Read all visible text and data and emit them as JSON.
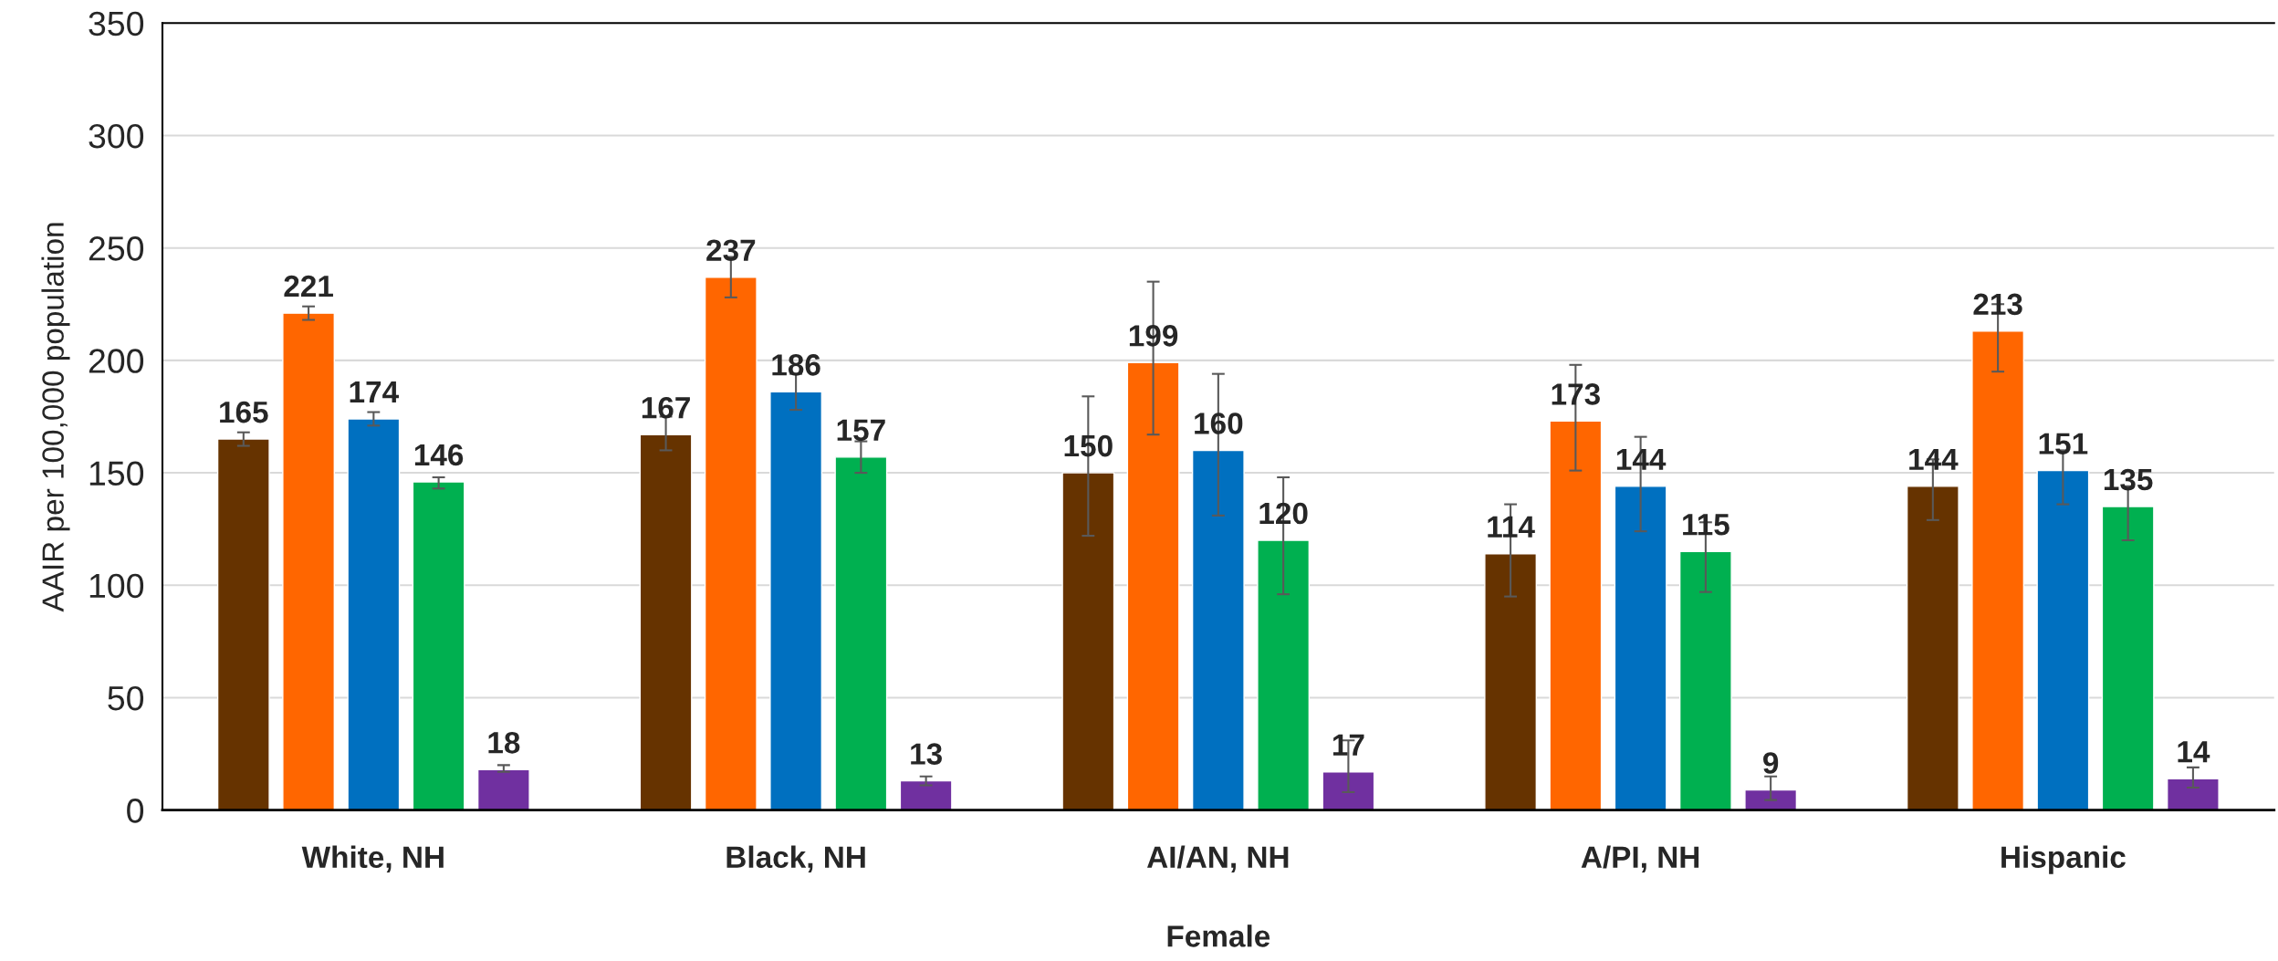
{
  "chart_data": {
    "type": "bar",
    "xlabel": "Female",
    "ylabel": "AAIR per 100,000 population",
    "categories": [
      "White, NH",
      "Black, NH",
      "AI/AN, NH",
      "A/PI, NH",
      "Hispanic"
    ],
    "series": [
      {
        "color": "#663300",
        "values": [
          165,
          167,
          150,
          114,
          144
        ],
        "errors": [
          [
            162,
            168
          ],
          [
            160,
            175
          ],
          [
            122,
            184
          ],
          [
            95,
            136
          ],
          [
            129,
            156
          ]
        ]
      },
      {
        "color": "#ff6600",
        "values": [
          221,
          237,
          199,
          173,
          213
        ],
        "errors": [
          [
            218,
            224
          ],
          [
            228,
            246
          ],
          [
            167,
            235
          ],
          [
            151,
            198
          ],
          [
            195,
            225
          ]
        ]
      },
      {
        "color": "#0070c0",
        "values": [
          174,
          186,
          160,
          144,
          151
        ],
        "errors": [
          [
            171,
            177
          ],
          [
            178,
            194
          ],
          [
            131,
            194
          ],
          [
            124,
            166
          ],
          [
            136,
            160
          ]
        ]
      },
      {
        "color": "#00b050",
        "values": [
          146,
          157,
          120,
          115,
          135
        ],
        "errors": [
          [
            143,
            148
          ],
          [
            150,
            164
          ],
          [
            96,
            148
          ],
          [
            97,
            128
          ],
          [
            120,
            144
          ]
        ]
      },
      {
        "color": "#7030a0",
        "values": [
          18,
          13,
          17,
          9,
          14
        ],
        "errors": [
          [
            17,
            20
          ],
          [
            11,
            15
          ],
          [
            8,
            31
          ],
          [
            4.5,
            15
          ],
          [
            10,
            19
          ]
        ]
      }
    ],
    "ylim": [
      0,
      350
    ],
    "yticks": [
      0,
      50,
      100,
      150,
      200,
      250,
      300,
      350
    ],
    "grid": "y",
    "data_labels": true,
    "legend": false
  }
}
